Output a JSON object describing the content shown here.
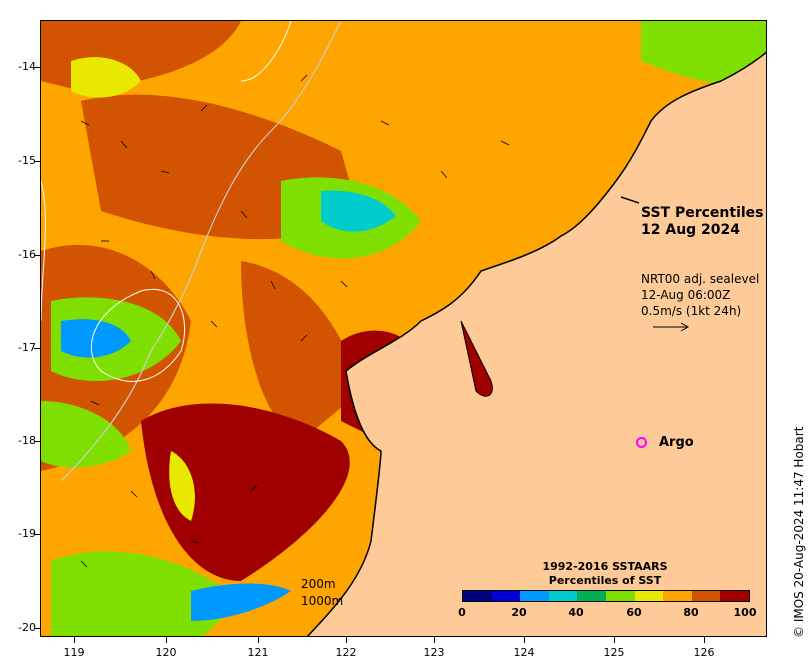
{
  "title": {
    "line1": "SST Percentiles",
    "line2": "12 Aug 2024"
  },
  "currents": {
    "line1": "NRT00 adj. sealevel",
    "line2": "12-Aug 06:00Z",
    "line3": "0.5m/s (1kt 24h)"
  },
  "argo_label": "Argo",
  "contours": {
    "label_200": "200m",
    "label_1000": "1000m"
  },
  "colorbar": {
    "title_line1": "1992-2016 SSTAARS",
    "title_line2": "Percentiles of SST",
    "labels": [
      "0",
      "20",
      "40",
      "60",
      "80",
      "100"
    ],
    "colors": [
      "#00007f",
      "#0000d4",
      "#0099ff",
      "#00cccc",
      "#00b050",
      "#7fdf00",
      "#e8e800",
      "#ffa500",
      "#d35400",
      "#a00000"
    ]
  },
  "axes": {
    "y_labels": [
      "-14",
      "-15",
      "-16",
      "-17",
      "-18",
      "-19",
      "-20"
    ],
    "x_labels": [
      "119",
      "120",
      "121",
      "122",
      "123",
      "124",
      "125",
      "126"
    ]
  },
  "copyright": "© IMOS 20-Aug-2024 11:47 Hobart",
  "colors": {
    "land": "#fdca98",
    "ocean_base": "#ffa500"
  }
}
